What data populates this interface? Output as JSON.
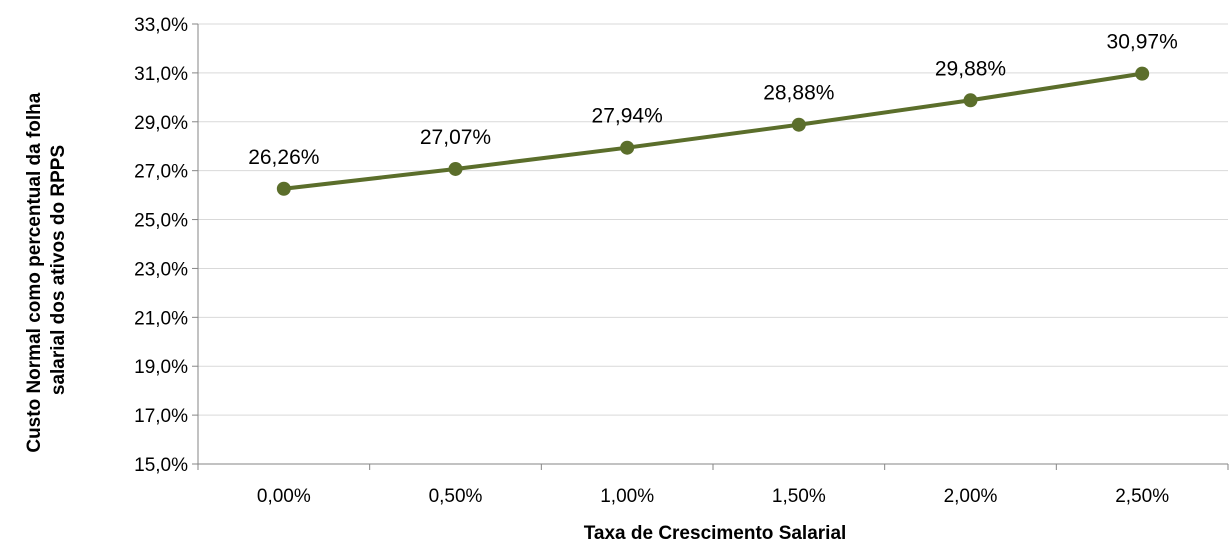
{
  "chart_data": {
    "type": "line",
    "title": "",
    "xlabel": "Taxa de Crescimento Salarial",
    "ylabel_lines": [
      "Custo Normal como percentual da folha",
      "salarial dos ativos do RPPS"
    ],
    "categories": [
      "0,00%",
      "0,50%",
      "1,00%",
      "1,50%",
      "2,00%",
      "2,50%"
    ],
    "series": [
      {
        "values": [
          26.26,
          27.07,
          27.94,
          28.88,
          29.88,
          30.97
        ],
        "data_labels": [
          "26,26%",
          "27,07%",
          "27,94%",
          "28,88%",
          "29,88%",
          "30,97%"
        ],
        "color": "#5b6e2b"
      }
    ],
    "ylim": [
      15,
      33
    ],
    "yticks": [
      15,
      17,
      19,
      21,
      23,
      25,
      27,
      29,
      31,
      33
    ],
    "ytick_labels": [
      "15,0%",
      "17,0%",
      "19,0%",
      "21,0%",
      "23,0%",
      "25,0%",
      "27,0%",
      "29,0%",
      "31,0%",
      "33,0%"
    ],
    "grid": true,
    "legend": "none"
  }
}
